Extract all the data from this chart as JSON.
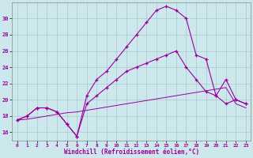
{
  "xlabel": "Windchill (Refroidissement éolien,°C)",
  "bg_color": "#cce8ec",
  "line_color": "#990099",
  "grid_color": "#aac8d0",
  "hours": [
    0,
    1,
    2,
    3,
    4,
    5,
    6,
    7,
    8,
    9,
    10,
    11,
    12,
    13,
    14,
    15,
    16,
    17,
    18,
    19,
    20,
    21,
    22,
    23
  ],
  "line1": [
    17.5,
    18.0,
    19.0,
    19.0,
    18.5,
    17.0,
    15.5,
    20.5,
    22.5,
    23.5,
    25.0,
    26.5,
    28.0,
    29.5,
    31.0,
    31.5,
    31.0,
    30.0,
    25.5,
    25.0,
    20.5,
    19.5,
    20.0,
    19.5
  ],
  "line2": [
    17.5,
    18.0,
    19.0,
    19.0,
    18.5,
    17.0,
    15.5,
    19.5,
    20.5,
    21.5,
    22.5,
    23.5,
    24.0,
    24.5,
    25.0,
    25.5,
    26.0,
    24.0,
    22.5,
    21.0,
    20.5,
    22.5,
    20.0,
    19.5
  ],
  "line3": [
    17.5,
    17.6,
    17.8,
    18.0,
    18.2,
    18.4,
    18.5,
    18.7,
    18.9,
    19.1,
    19.3,
    19.5,
    19.7,
    19.9,
    20.1,
    20.3,
    20.5,
    20.7,
    20.9,
    21.1,
    21.3,
    21.5,
    19.5,
    19.0
  ],
  "ylim": [
    15.0,
    32.0
  ],
  "yticks": [
    16,
    18,
    20,
    22,
    24,
    26,
    28,
    30
  ],
  "xlim": [
    -0.5,
    23.5
  ],
  "xticks": [
    0,
    1,
    2,
    3,
    4,
    5,
    6,
    7,
    8,
    9,
    10,
    11,
    12,
    13,
    14,
    15,
    16,
    17,
    18,
    19,
    20,
    21,
    22,
    23
  ]
}
